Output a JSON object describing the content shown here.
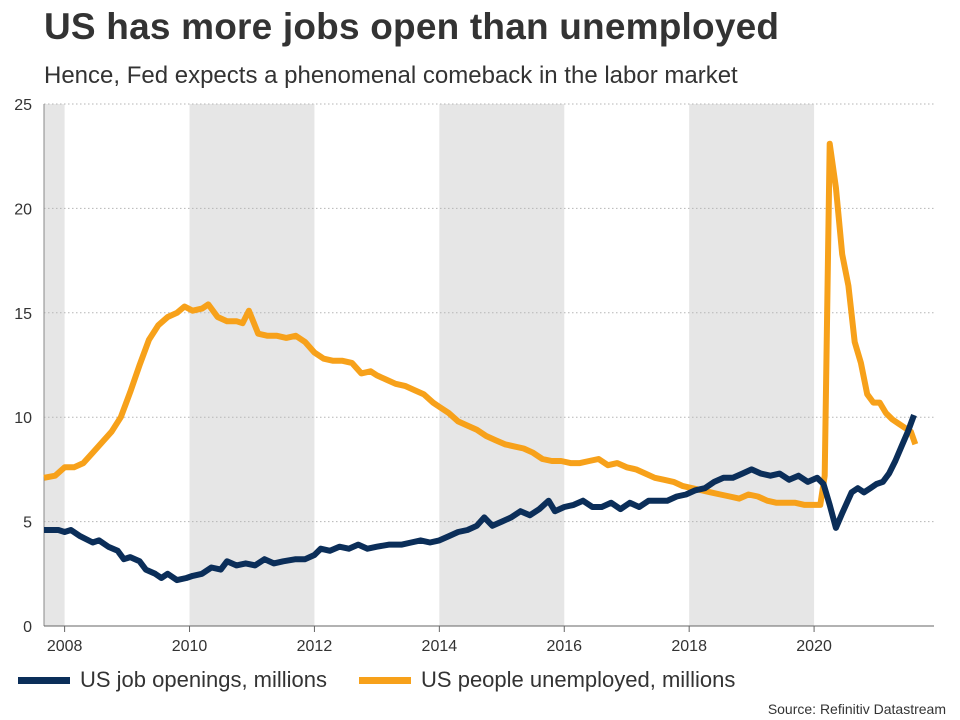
{
  "title": "US has more jobs open than unemployed",
  "subtitle": "Hence, Fed expects a phenomenal comeback in the labor market",
  "source": "Source: Refinitiv Datastream",
  "colors": {
    "openings": "#0b2e59",
    "unemployed": "#f7a11a",
    "shade": "#e6e6e6",
    "grid": "#b5b5b5",
    "axis": "#333333"
  },
  "chart_data": {
    "type": "line",
    "title": "US has more jobs open than unemployed",
    "subtitle": "Hence, Fed expects a phenomenal comeback in the labor market",
    "xlabel": "",
    "ylabel": "",
    "xlim": [
      2007.67,
      2021.92
    ],
    "ylim": [
      0,
      25
    ],
    "yticks": [
      0,
      5,
      10,
      15,
      20,
      25
    ],
    "xticks": [
      2008,
      2010,
      2012,
      2014,
      2016,
      2018,
      2020
    ],
    "xtick_labels": [
      "2008",
      "2010",
      "2012",
      "2014",
      "2016",
      "2018",
      "2020"
    ],
    "grid": "horizontal dotted",
    "shaded_bands": [
      [
        2007.67,
        2008.0
      ],
      [
        2010.0,
        2012.0
      ],
      [
        2014.0,
        2016.0
      ],
      [
        2018.0,
        2020.0
      ]
    ],
    "legend_position": "bottom",
    "series": [
      {
        "name": "US job openings, millions",
        "color": "#0b2e59",
        "points": [
          [
            2007.67,
            4.6
          ],
          [
            2007.9,
            4.6
          ],
          [
            2008.0,
            4.5
          ],
          [
            2008.1,
            4.6
          ],
          [
            2008.25,
            4.3
          ],
          [
            2008.45,
            4.0
          ],
          [
            2008.55,
            4.1
          ],
          [
            2008.7,
            3.8
          ],
          [
            2008.85,
            3.6
          ],
          [
            2008.95,
            3.2
          ],
          [
            2009.05,
            3.3
          ],
          [
            2009.2,
            3.1
          ],
          [
            2009.3,
            2.7
          ],
          [
            2009.45,
            2.5
          ],
          [
            2009.55,
            2.3
          ],
          [
            2009.65,
            2.5
          ],
          [
            2009.8,
            2.2
          ],
          [
            2009.95,
            2.3
          ],
          [
            2010.05,
            2.4
          ],
          [
            2010.2,
            2.5
          ],
          [
            2010.35,
            2.8
          ],
          [
            2010.5,
            2.7
          ],
          [
            2010.6,
            3.1
          ],
          [
            2010.75,
            2.9
          ],
          [
            2010.9,
            3.0
          ],
          [
            2011.05,
            2.9
          ],
          [
            2011.2,
            3.2
          ],
          [
            2011.35,
            3.0
          ],
          [
            2011.5,
            3.1
          ],
          [
            2011.7,
            3.2
          ],
          [
            2011.85,
            3.2
          ],
          [
            2012.0,
            3.4
          ],
          [
            2012.1,
            3.7
          ],
          [
            2012.25,
            3.6
          ],
          [
            2012.4,
            3.8
          ],
          [
            2012.55,
            3.7
          ],
          [
            2012.7,
            3.9
          ],
          [
            2012.85,
            3.7
          ],
          [
            2013.0,
            3.8
          ],
          [
            2013.2,
            3.9
          ],
          [
            2013.4,
            3.9
          ],
          [
            2013.55,
            4.0
          ],
          [
            2013.7,
            4.1
          ],
          [
            2013.85,
            4.0
          ],
          [
            2014.0,
            4.1
          ],
          [
            2014.15,
            4.3
          ],
          [
            2014.3,
            4.5
          ],
          [
            2014.45,
            4.6
          ],
          [
            2014.6,
            4.8
          ],
          [
            2014.72,
            5.2
          ],
          [
            2014.85,
            4.8
          ],
          [
            2015.0,
            5.0
          ],
          [
            2015.15,
            5.2
          ],
          [
            2015.3,
            5.5
          ],
          [
            2015.45,
            5.3
          ],
          [
            2015.6,
            5.6
          ],
          [
            2015.75,
            6.0
          ],
          [
            2015.85,
            5.5
          ],
          [
            2016.0,
            5.7
          ],
          [
            2016.15,
            5.8
          ],
          [
            2016.3,
            6.0
          ],
          [
            2016.45,
            5.7
          ],
          [
            2016.6,
            5.7
          ],
          [
            2016.75,
            5.9
          ],
          [
            2016.9,
            5.6
          ],
          [
            2017.05,
            5.9
          ],
          [
            2017.2,
            5.7
          ],
          [
            2017.35,
            6.0
          ],
          [
            2017.5,
            6.0
          ],
          [
            2017.65,
            6.0
          ],
          [
            2017.8,
            6.2
          ],
          [
            2017.95,
            6.3
          ],
          [
            2018.1,
            6.5
          ],
          [
            2018.25,
            6.6
          ],
          [
            2018.4,
            6.9
          ],
          [
            2018.55,
            7.1
          ],
          [
            2018.7,
            7.1
          ],
          [
            2018.85,
            7.3
          ],
          [
            2019.0,
            7.5
          ],
          [
            2019.15,
            7.3
          ],
          [
            2019.3,
            7.2
          ],
          [
            2019.45,
            7.3
          ],
          [
            2019.6,
            7.0
          ],
          [
            2019.75,
            7.2
          ],
          [
            2019.9,
            6.9
          ],
          [
            2020.05,
            7.1
          ],
          [
            2020.15,
            6.8
          ],
          [
            2020.25,
            5.8
          ],
          [
            2020.35,
            4.7
          ],
          [
            2020.45,
            5.4
          ],
          [
            2020.6,
            6.4
          ],
          [
            2020.7,
            6.6
          ],
          [
            2020.8,
            6.4
          ],
          [
            2020.9,
            6.6
          ],
          [
            2021.0,
            6.8
          ],
          [
            2021.1,
            6.9
          ],
          [
            2021.2,
            7.3
          ],
          [
            2021.3,
            7.9
          ],
          [
            2021.4,
            8.6
          ],
          [
            2021.5,
            9.3
          ],
          [
            2021.6,
            10.1
          ]
        ]
      },
      {
        "name": "US people unemployed, millions",
        "color": "#f7a11a",
        "points": [
          [
            2007.67,
            7.1
          ],
          [
            2007.85,
            7.2
          ],
          [
            2008.0,
            7.6
          ],
          [
            2008.15,
            7.6
          ],
          [
            2008.3,
            7.8
          ],
          [
            2008.45,
            8.3
          ],
          [
            2008.6,
            8.8
          ],
          [
            2008.75,
            9.3
          ],
          [
            2008.9,
            10.0
          ],
          [
            2009.05,
            11.2
          ],
          [
            2009.2,
            12.5
          ],
          [
            2009.35,
            13.7
          ],
          [
            2009.5,
            14.4
          ],
          [
            2009.65,
            14.8
          ],
          [
            2009.8,
            15.0
          ],
          [
            2009.92,
            15.3
          ],
          [
            2010.05,
            15.1
          ],
          [
            2010.2,
            15.2
          ],
          [
            2010.3,
            15.4
          ],
          [
            2010.45,
            14.8
          ],
          [
            2010.6,
            14.6
          ],
          [
            2010.75,
            14.6
          ],
          [
            2010.85,
            14.5
          ],
          [
            2010.95,
            15.1
          ],
          [
            2011.1,
            14.0
          ],
          [
            2011.25,
            13.9
          ],
          [
            2011.4,
            13.9
          ],
          [
            2011.55,
            13.8
          ],
          [
            2011.7,
            13.9
          ],
          [
            2011.85,
            13.6
          ],
          [
            2012.0,
            13.1
          ],
          [
            2012.15,
            12.8
          ],
          [
            2012.3,
            12.7
          ],
          [
            2012.45,
            12.7
          ],
          [
            2012.6,
            12.6
          ],
          [
            2012.75,
            12.1
          ],
          [
            2012.9,
            12.2
          ],
          [
            2013.0,
            12.0
          ],
          [
            2013.15,
            11.8
          ],
          [
            2013.3,
            11.6
          ],
          [
            2013.45,
            11.5
          ],
          [
            2013.6,
            11.3
          ],
          [
            2013.75,
            11.1
          ],
          [
            2013.9,
            10.7
          ],
          [
            2014.0,
            10.5
          ],
          [
            2014.15,
            10.2
          ],
          [
            2014.3,
            9.8
          ],
          [
            2014.45,
            9.6
          ],
          [
            2014.6,
            9.4
          ],
          [
            2014.75,
            9.1
          ],
          [
            2014.9,
            8.9
          ],
          [
            2015.05,
            8.7
          ],
          [
            2015.2,
            8.6
          ],
          [
            2015.35,
            8.5
          ],
          [
            2015.5,
            8.3
          ],
          [
            2015.65,
            8.0
          ],
          [
            2015.8,
            7.9
          ],
          [
            2015.95,
            7.9
          ],
          [
            2016.1,
            7.8
          ],
          [
            2016.25,
            7.8
          ],
          [
            2016.4,
            7.9
          ],
          [
            2016.55,
            8.0
          ],
          [
            2016.7,
            7.7
          ],
          [
            2016.85,
            7.8
          ],
          [
            2017.0,
            7.6
          ],
          [
            2017.15,
            7.5
          ],
          [
            2017.3,
            7.3
          ],
          [
            2017.45,
            7.1
          ],
          [
            2017.6,
            7.0
          ],
          [
            2017.75,
            6.9
          ],
          [
            2017.9,
            6.7
          ],
          [
            2018.05,
            6.6
          ],
          [
            2018.2,
            6.5
          ],
          [
            2018.35,
            6.4
          ],
          [
            2018.5,
            6.3
          ],
          [
            2018.65,
            6.2
          ],
          [
            2018.8,
            6.1
          ],
          [
            2018.95,
            6.3
          ],
          [
            2019.1,
            6.2
          ],
          [
            2019.25,
            6.0
          ],
          [
            2019.4,
            5.9
          ],
          [
            2019.55,
            5.9
          ],
          [
            2019.7,
            5.9
          ],
          [
            2019.85,
            5.8
          ],
          [
            2020.0,
            5.8
          ],
          [
            2020.1,
            5.8
          ],
          [
            2020.17,
            7.2
          ],
          [
            2020.25,
            23.1
          ],
          [
            2020.35,
            21.0
          ],
          [
            2020.45,
            17.8
          ],
          [
            2020.55,
            16.3
          ],
          [
            2020.65,
            13.6
          ],
          [
            2020.75,
            12.6
          ],
          [
            2020.85,
            11.1
          ],
          [
            2020.95,
            10.7
          ],
          [
            2021.05,
            10.7
          ],
          [
            2021.15,
            10.2
          ],
          [
            2021.25,
            9.9
          ],
          [
            2021.35,
            9.7
          ],
          [
            2021.45,
            9.5
          ],
          [
            2021.55,
            9.3
          ],
          [
            2021.62,
            8.7
          ]
        ]
      }
    ]
  }
}
